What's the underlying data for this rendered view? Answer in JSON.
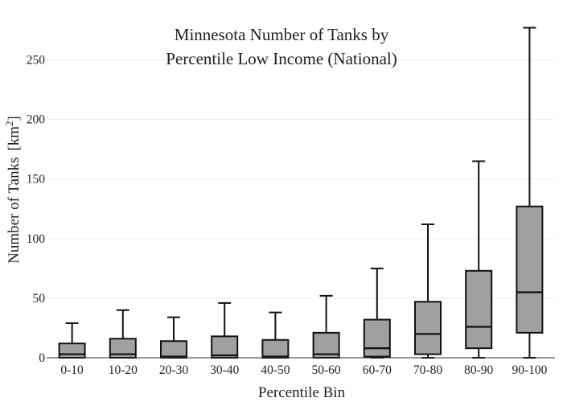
{
  "chart_data": {
    "type": "box",
    "title_lines": [
      "Minnesota Number of Tanks by",
      "Percentile Low Income (National)"
    ],
    "xlabel": "Percentile Bin",
    "ylabel": "Number of Tanks",
    "ylabel_unit": "[km",
    "ylabel_unit_sup": "2",
    "ylabel_unit_close": "]",
    "ylim": [
      0,
      280
    ],
    "yticks": [
      0,
      50,
      100,
      150,
      200,
      250
    ],
    "grid": true,
    "box_color": "#a0a0a0",
    "line_color": "#111111",
    "categories": [
      "0-10",
      "10-20",
      "20-30",
      "30-40",
      "40-50",
      "50-60",
      "60-70",
      "70-80",
      "80-90",
      "90-100"
    ],
    "boxes": [
      {
        "category": "0-10",
        "min": 0,
        "q1": 0,
        "median": 3,
        "q3": 12,
        "max": 29
      },
      {
        "category": "10-20",
        "min": 0,
        "q1": 0,
        "median": 3,
        "q3": 16,
        "max": 40
      },
      {
        "category": "20-30",
        "min": 0,
        "q1": 0,
        "median": 1,
        "q3": 14,
        "max": 34
      },
      {
        "category": "30-40",
        "min": 0,
        "q1": 0,
        "median": 2,
        "q3": 18,
        "max": 46
      },
      {
        "category": "40-50",
        "min": 0,
        "q1": 0,
        "median": 1,
        "q3": 15,
        "max": 38
      },
      {
        "category": "50-60",
        "min": 0,
        "q1": 0,
        "median": 3,
        "q3": 21,
        "max": 52
      },
      {
        "category": "60-70",
        "min": 0,
        "q1": 1,
        "median": 8,
        "q3": 32,
        "max": 75
      },
      {
        "category": "70-80",
        "min": 0,
        "q1": 3,
        "median": 20,
        "q3": 47,
        "max": 112
      },
      {
        "category": "80-90",
        "min": 0,
        "q1": 8,
        "median": 26,
        "q3": 73,
        "max": 165
      },
      {
        "category": "90-100",
        "min": 0,
        "q1": 21,
        "median": 55,
        "q3": 127,
        "max": 277
      }
    ]
  }
}
